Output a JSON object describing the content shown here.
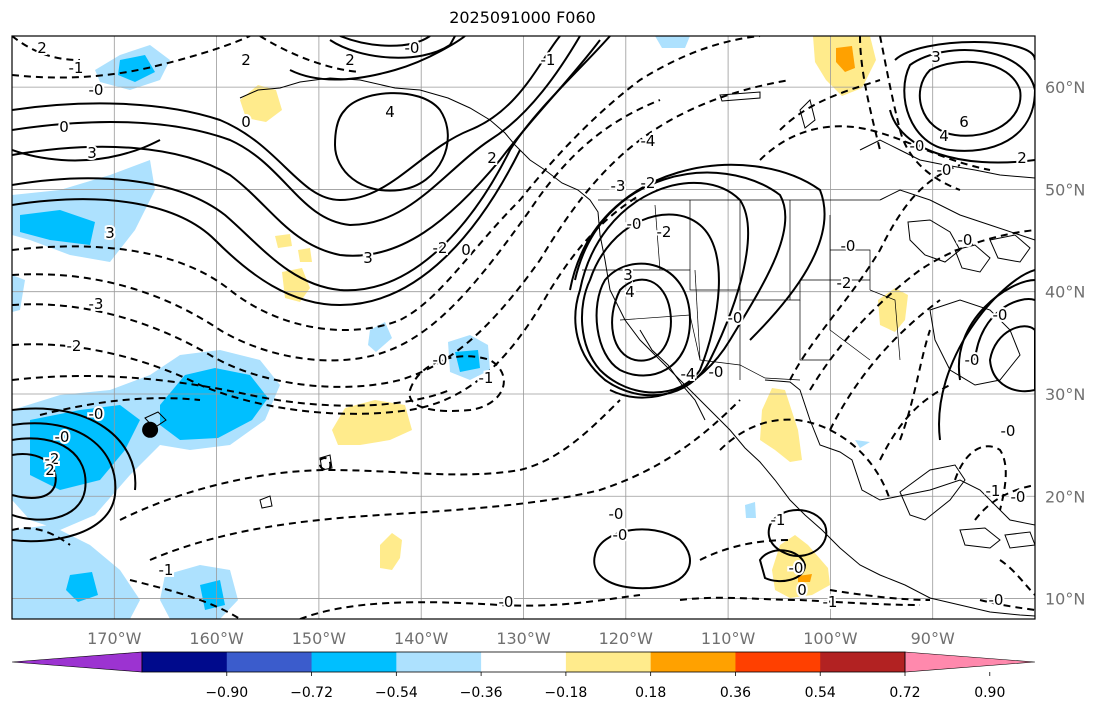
{
  "title": "2025091000 F060",
  "map": {
    "lon_range": [
      -180,
      -80
    ],
    "lat_range": [
      8,
      65
    ],
    "lon_ticks": [
      {
        "value": -170,
        "label": "170°W"
      },
      {
        "value": -160,
        "label": "160°W"
      },
      {
        "value": -150,
        "label": "150°W"
      },
      {
        "value": -140,
        "label": "140°W"
      },
      {
        "value": -130,
        "label": "130°W"
      },
      {
        "value": -120,
        "label": "120°W"
      },
      {
        "value": -110,
        "label": "110°W"
      },
      {
        "value": -100,
        "label": "100°W"
      },
      {
        "value": -90,
        "label": "90°W"
      }
    ],
    "lat_ticks": [
      {
        "value": 60,
        "label": "60°N"
      },
      {
        "value": 50,
        "label": "50°N"
      },
      {
        "value": 40,
        "label": "40°N"
      },
      {
        "value": 30,
        "label": "30°N"
      },
      {
        "value": 20,
        "label": "20°N"
      },
      {
        "value": 10,
        "label": "10°N"
      }
    ],
    "marker": {
      "name": "station",
      "lon": -166.5,
      "lat": 26.5
    }
  },
  "contour_labels": [
    "2",
    "-1",
    "-0",
    "3",
    "0",
    "0",
    "2",
    "-1",
    "-0",
    "4",
    "2",
    "3",
    "3",
    "-2",
    "-3",
    "-2",
    "-0",
    "0",
    "2",
    "-1",
    "-0",
    "-1",
    "-0",
    "-2",
    "2",
    "-0",
    "-4",
    "-3",
    "-2",
    "-0",
    "-2",
    "-0",
    "-0",
    "3",
    "4",
    "-0",
    "-1",
    "-0",
    "0",
    "-1",
    "-0",
    "-4",
    "-2",
    "-0",
    "3",
    "6",
    "4",
    "2",
    "-0",
    "-0",
    "-0",
    "-0",
    "-1",
    "-0",
    "-0",
    "-0",
    "-0"
  ],
  "colorbar": {
    "colors": [
      "#9c33d1",
      "#000a8c",
      "#3b5ccc",
      "#00bfff",
      "#ade1fe",
      "#ffffff",
      "#ffeb8c",
      "#ffa100",
      "#ff4000",
      "#b22222",
      "#ff89ad"
    ],
    "tick_labels": [
      "−0.90",
      "−0.72",
      "−0.54",
      "−0.36",
      "−0.18",
      "0.18",
      "0.36",
      "0.54",
      "0.72",
      "0.90"
    ]
  }
}
